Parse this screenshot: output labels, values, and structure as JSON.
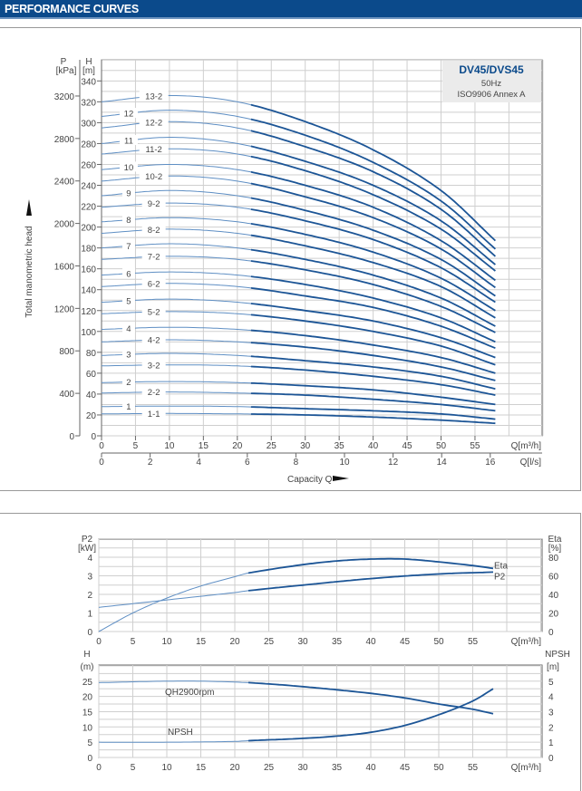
{
  "header": {
    "title": "PERFORMANCE CURVES"
  },
  "colors": {
    "header": "#0b4a8b",
    "curve": "#1c5596",
    "curve_light": "#5f8fc4",
    "grid": "#cfcfcf",
    "infobox": "#ebebeb"
  },
  "chart_data": [
    {
      "type": "line",
      "title": "DV45/DVS45",
      "subtitle": [
        "50Hz",
        "ISO9906 Annex A"
      ],
      "ylabel": "Total manometric head",
      "xlabel": "Capacity Q",
      "y_left_title": [
        "P",
        "[kPa]"
      ],
      "y_title": [
        "H",
        "[m]"
      ],
      "x_unit": "Q[m³/h]",
      "x2_unit": "Q[l/s]",
      "xlim": [
        0,
        65
      ],
      "ylim": [
        0,
        360
      ],
      "x_ticks": [
        "0",
        "5",
        "10",
        "15",
        "20",
        "25",
        "30",
        "35",
        "40",
        "45",
        "50",
        "55"
      ],
      "x2_ticks": [
        "0",
        "2",
        "4",
        "6",
        "8",
        "10",
        "12",
        "14",
        "16"
      ],
      "y_ticks": [
        "0",
        "20",
        "40",
        "60",
        "80",
        "100",
        "120",
        "140",
        "160",
        "180",
        "200",
        "220",
        "240",
        "260",
        "280",
        "300",
        "320",
        "340"
      ],
      "p_ticks": [
        "0",
        "400",
        "800",
        "1200",
        "1600",
        "2000",
        "2400",
        "2800",
        "3200"
      ],
      "grid": true,
      "x": [
        0,
        10,
        20,
        30,
        40,
        50,
        58
      ],
      "series": [
        {
          "name": "13-2",
          "values": [
            320,
            326,
            320,
            301,
            274,
            235,
            187
          ]
        },
        {
          "name": "12",
          "values": [
            306,
            312,
            306,
            288,
            262,
            225,
            179
          ]
        },
        {
          "name": "12-2",
          "values": [
            295,
            301,
            295,
            277,
            253,
            217,
            172
          ]
        },
        {
          "name": "11",
          "values": [
            280,
            286,
            280,
            263,
            240,
            206,
            164
          ]
        },
        {
          "name": "11-2",
          "values": [
            270,
            275,
            270,
            254,
            231,
            198,
            158
          ]
        },
        {
          "name": "10",
          "values": [
            255,
            260,
            255,
            240,
            219,
            187,
            149
          ]
        },
        {
          "name": "10-2",
          "values": [
            244,
            249,
            244,
            229,
            209,
            179,
            142
          ]
        },
        {
          "name": "9",
          "values": [
            230,
            235,
            230,
            216,
            197,
            169,
            134
          ]
        },
        {
          "name": "9-2",
          "values": [
            219,
            223,
            219,
            206,
            188,
            161,
            128
          ]
        },
        {
          "name": "8",
          "values": [
            205,
            209,
            205,
            193,
            176,
            151,
            120
          ]
        },
        {
          "name": "8-2",
          "values": [
            194,
            198,
            194,
            182,
            166,
            143,
            113
          ]
        },
        {
          "name": "7",
          "values": [
            180,
            184,
            180,
            169,
            154,
            132,
            105
          ]
        },
        {
          "name": "7-2",
          "values": [
            169,
            172,
            169,
            159,
            145,
            124,
            99
          ]
        },
        {
          "name": "6",
          "values": [
            154,
            157,
            154,
            145,
            132,
            113,
            90
          ]
        },
        {
          "name": "6-2",
          "values": [
            143,
            146,
            143,
            134,
            123,
            105,
            84
          ]
        },
        {
          "name": "5",
          "values": [
            128,
            131,
            128,
            120,
            110,
            94,
            75
          ]
        },
        {
          "name": "5-2",
          "values": [
            117,
            119,
            117,
            110,
            100,
            86,
            68
          ]
        },
        {
          "name": "4",
          "values": [
            102,
            104,
            102,
            96,
            87,
            75,
            60
          ]
        },
        {
          "name": "4-2",
          "values": [
            90,
            92,
            90,
            85,
            77,
            66,
            53
          ]
        },
        {
          "name": "3",
          "values": [
            77,
            79,
            77,
            72,
            66,
            57,
            45
          ]
        },
        {
          "name": "3-2",
          "values": [
            67,
            68,
            67,
            63,
            57,
            49,
            39
          ]
        },
        {
          "name": "2",
          "values": [
            51,
            52,
            51,
            48,
            44,
            37,
            30
          ]
        },
        {
          "name": "2-2",
          "values": [
            41,
            42,
            41,
            39,
            35,
            30,
            24
          ]
        },
        {
          "name": "1",
          "values": [
            28,
            28.5,
            28,
            26,
            24,
            21,
            16
          ]
        },
        {
          "name": "1-1",
          "values": [
            21,
            21.4,
            21,
            20,
            18,
            15,
            12
          ]
        }
      ]
    },
    {
      "type": "line",
      "y_title": [
        "P2",
        "[kW]"
      ],
      "y2_title": [
        "Eta",
        "[%]"
      ],
      "x_unit": "Q[m³/h]",
      "xlim": [
        0,
        65
      ],
      "ylim": [
        0,
        5
      ],
      "y2lim": [
        0,
        100
      ],
      "x_ticks": [
        "0",
        "5",
        "10",
        "15",
        "20",
        "25",
        "30",
        "35",
        "40",
        "45",
        "50",
        "55"
      ],
      "y_ticks": [
        "0",
        "1",
        "2",
        "3",
        "4"
      ],
      "y2_ticks": [
        "0",
        "20",
        "40",
        "60",
        "80"
      ],
      "grid": true,
      "series": [
        {
          "name": "Eta",
          "axis": "right",
          "x": [
            0,
            5,
            10,
            15,
            20,
            22,
            30,
            35,
            40,
            45,
            50,
            55,
            58
          ],
          "values": [
            0,
            20,
            36,
            49,
            59,
            63,
            72,
            76,
            78,
            78,
            75,
            71,
            68
          ]
        },
        {
          "name": "P2",
          "axis": "left",
          "x": [
            0,
            10,
            20,
            22,
            30,
            40,
            50,
            58
          ],
          "values": [
            1.3,
            1.7,
            2.1,
            2.2,
            2.5,
            2.85,
            3.1,
            3.2
          ]
        }
      ]
    },
    {
      "type": "line",
      "y_title": [
        "H",
        "(m)"
      ],
      "y2_title": [
        "NPSH",
        "[m]"
      ],
      "x_unit": "Q[m³/h]",
      "xlim": [
        0,
        65
      ],
      "ylim": [
        0,
        30
      ],
      "y2lim": [
        0,
        6
      ],
      "x_ticks": [
        "0",
        "5",
        "10",
        "15",
        "20",
        "25",
        "30",
        "35",
        "40",
        "45",
        "50",
        "55"
      ],
      "y_ticks": [
        "0",
        "5",
        "10",
        "15",
        "20",
        "25"
      ],
      "y2_ticks": [
        "0",
        "1",
        "2",
        "3",
        "4",
        "5"
      ],
      "grid": true,
      "series": [
        {
          "name": "QH2900rpm",
          "axis": "left",
          "x": [
            0,
            10,
            15,
            22,
            30,
            40,
            45,
            50,
            55,
            58
          ],
          "values": [
            24.5,
            25,
            25,
            24.5,
            23.2,
            21,
            19.5,
            17.5,
            15.8,
            14.3
          ]
        },
        {
          "name": "NPSH",
          "axis": "right",
          "x": [
            0,
            10,
            20,
            22,
            30,
            35,
            40,
            45,
            50,
            55,
            58
          ],
          "values": [
            1.0,
            1.0,
            1.05,
            1.1,
            1.25,
            1.4,
            1.65,
            2.1,
            2.8,
            3.7,
            4.5
          ]
        }
      ]
    }
  ]
}
